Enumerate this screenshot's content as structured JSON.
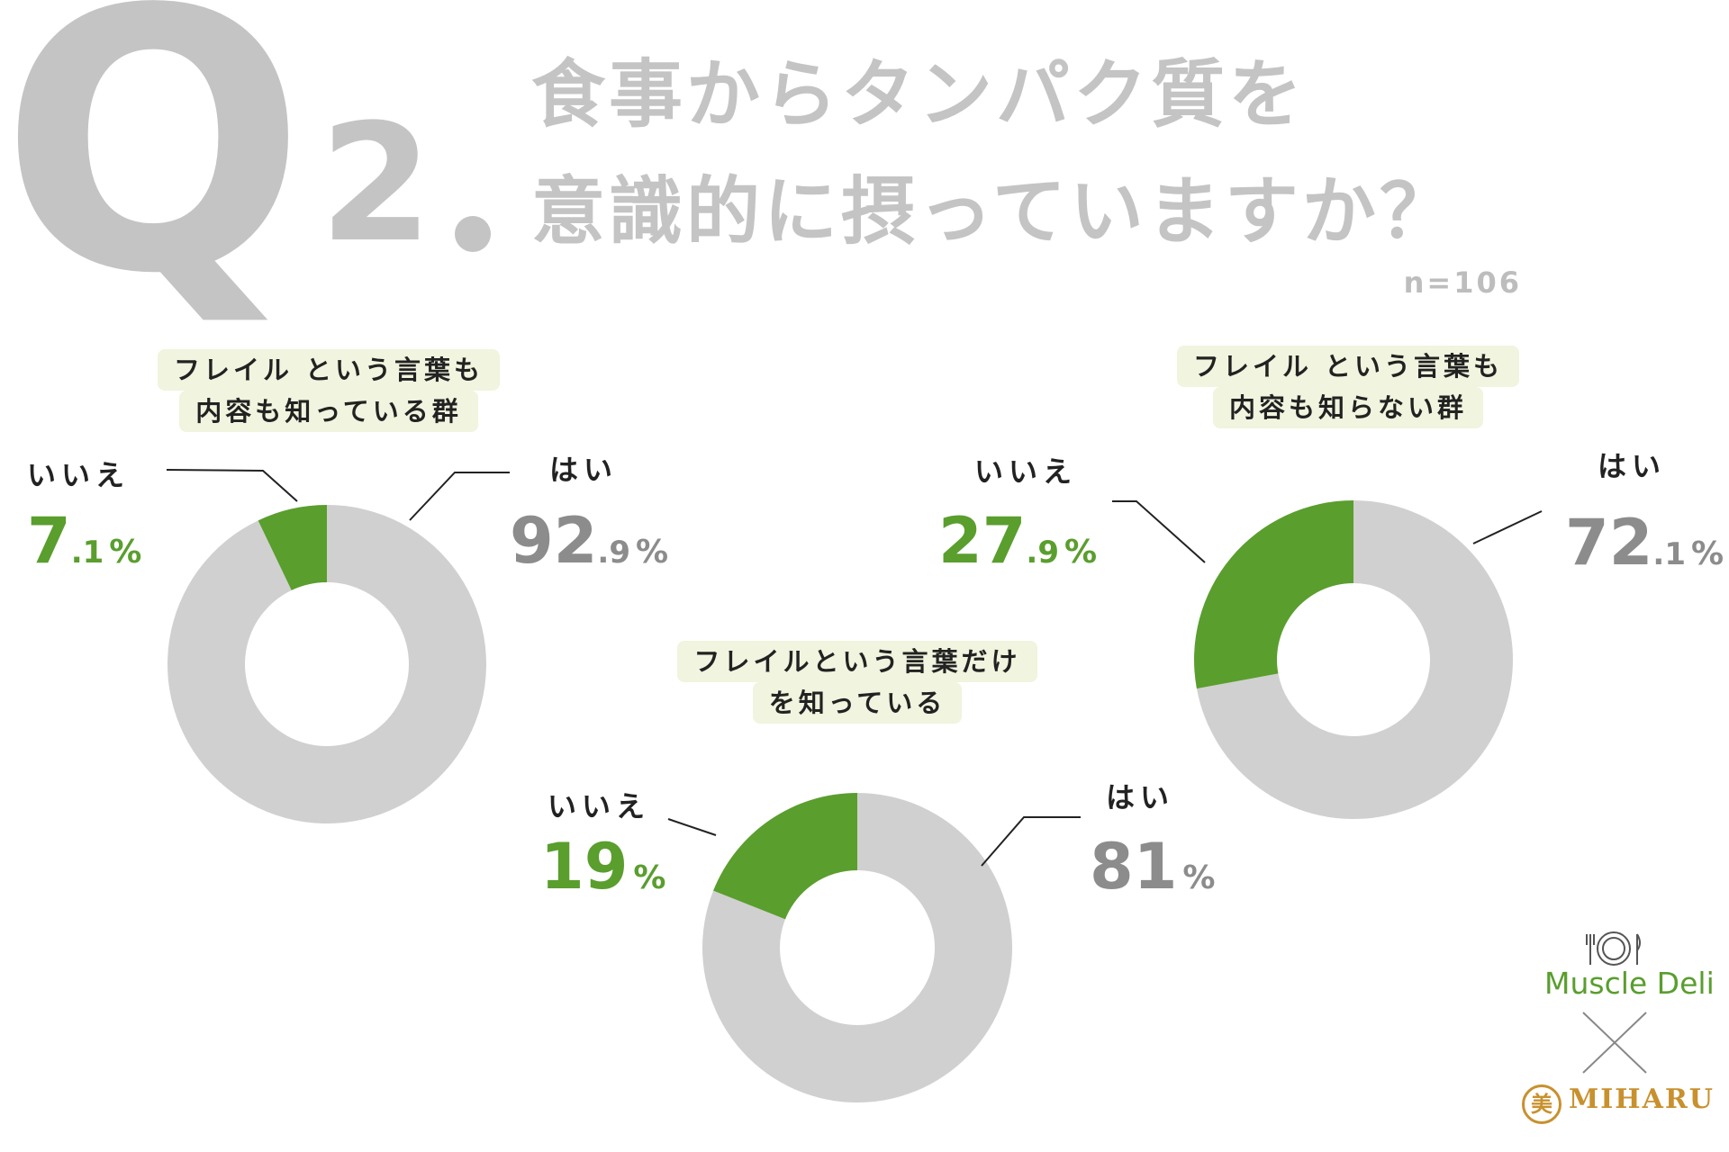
{
  "header": {
    "q_letter": "Q",
    "q_number": "2",
    "title_line1": "食事からタンパク質を",
    "title_line2": "意識的に摂っていますか？",
    "sample_size": "n=106"
  },
  "colors": {
    "yes": "#d0d0d0",
    "no": "#5a9e2e",
    "label_bg": "#f1f4de",
    "title_gray": "#c4c4c4"
  },
  "chart_data": [
    {
      "type": "pie",
      "title_line1": "フレイル という言葉も",
      "title_line2": "内容も知っている群",
      "slices": [
        {
          "label": "はい",
          "value": 92.9,
          "int": "92",
          "dec": ".9",
          "unit": "%"
        },
        {
          "label": "いいえ",
          "value": 7.1,
          "int": "7",
          "dec": ".1",
          "unit": "%"
        }
      ]
    },
    {
      "type": "pie",
      "title_line1": "フレイルという言葉だけ",
      "title_line2": "を知っている",
      "slices": [
        {
          "label": "はい",
          "value": 81,
          "int": "81",
          "dec": "",
          "unit": "%"
        },
        {
          "label": "いいえ",
          "value": 19,
          "int": "19",
          "dec": "",
          "unit": "%"
        }
      ]
    },
    {
      "type": "pie",
      "title_line1": "フレイル という言葉も",
      "title_line2": "内容も知らない群",
      "slices": [
        {
          "label": "はい",
          "value": 72.1,
          "int": "72",
          "dec": ".1",
          "unit": "%"
        },
        {
          "label": "いいえ",
          "value": 27.9,
          "int": "27",
          "dec": ".9",
          "unit": "%"
        }
      ]
    }
  ],
  "logo": {
    "brand1": "Muscle Deli",
    "brand2": "MIHARU",
    "seal_char": "美"
  }
}
